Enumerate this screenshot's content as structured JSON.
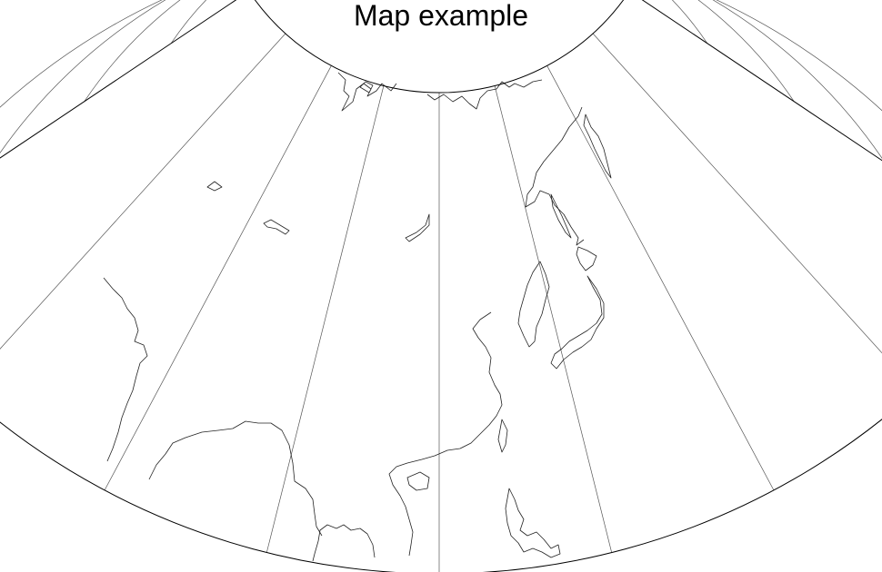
{
  "map": {
    "title": "Map example",
    "projection": "conic",
    "colors": {
      "background": "#ffffff",
      "coastline": "#222222",
      "graticule": "#555555",
      "frame": "#000000"
    },
    "graticule_parallels_deg": [
      70,
      60,
      50,
      40,
      30,
      20
    ],
    "graticule_meridians_deg": [
      60,
      75,
      90,
      105,
      120,
      135,
      150,
      165,
      180
    ]
  }
}
